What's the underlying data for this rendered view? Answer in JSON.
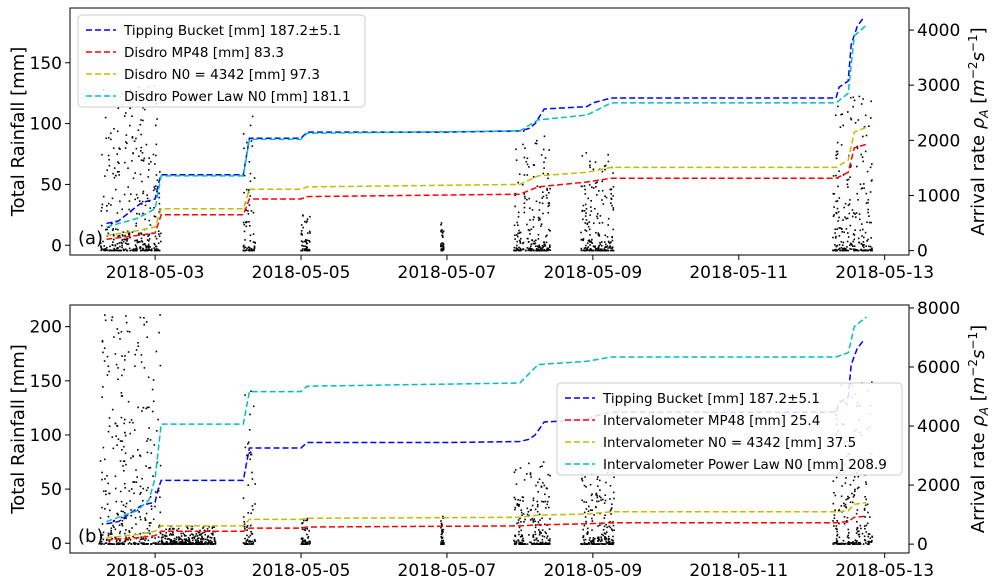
{
  "chart_data": [
    {
      "type": "line",
      "panel_label": "(a)",
      "ylabel": "Total Rainfall [mm]",
      "ylabel_right": "Arrival rate ρA [m⁻²s⁻¹]",
      "ylabel_right_parts": {
        "pre": "Arrival rate ",
        "rho": "ρ",
        "sub": "A",
        "open": " [",
        "m": "m",
        "msup": "−2",
        "s": "s",
        "ssup": "−1",
        "close": "]"
      },
      "xlim": [
        "2018-05-01T20:00",
        "2018-05-13T08:00"
      ],
      "ylim": [
        -8,
        195
      ],
      "ylim_right": [
        -80,
        4400
      ],
      "x_ticks": [
        "2018-05-03",
        "2018-05-05",
        "2018-05-07",
        "2018-05-09",
        "2018-05-11",
        "2018-05-13"
      ],
      "y_ticks": [
        0,
        50,
        100,
        150
      ],
      "y_ticks_right": [
        0,
        1000,
        2000,
        3000,
        4000
      ],
      "legend_position": "upper-left",
      "series": [
        {
          "name": "Tipping Bucket [mm] 187.2±5.1",
          "color": "#0000ff",
          "x": [
            "2018-05-02T08:00",
            "2018-05-02T12:00",
            "2018-05-02T19:00",
            "2018-05-02T21:00",
            "2018-05-03T00:00",
            "2018-05-03T01:00",
            "2018-05-03T02:00",
            "2018-05-04T05:00",
            "2018-05-04T07:00",
            "2018-05-05T00:00",
            "2018-05-05T02:00",
            "2018-05-07T00:00",
            "2018-05-08T00:00",
            "2018-05-08T03:00",
            "2018-05-08T05:00",
            "2018-05-08T08:00",
            "2018-05-08T22:00",
            "2018-05-09T00:00",
            "2018-05-09T06:00",
            "2018-05-12T08:00",
            "2018-05-12T09:00",
            "2018-05-12T12:00",
            "2018-05-12T13:00",
            "2018-05-12T15:00",
            "2018-05-12T17:00"
          ],
          "y": [
            18,
            20,
            34,
            36,
            38,
            50,
            58,
            58,
            88,
            88,
            93,
            93,
            94,
            96,
            100,
            112,
            114,
            117,
            121,
            121,
            130,
            135,
            165,
            180,
            187
          ]
        },
        {
          "name": "Disdro MP48 [mm] 83.3",
          "color": "#ff0000",
          "x": [
            "2018-05-02T08:00",
            "2018-05-02T18:00",
            "2018-05-03T00:00",
            "2018-05-03T02:00",
            "2018-05-04T05:00",
            "2018-05-04T07:00",
            "2018-05-05T00:00",
            "2018-05-05T02:00",
            "2018-05-08T00:00",
            "2018-05-08T06:00",
            "2018-05-08T22:00",
            "2018-05-09T06:00",
            "2018-05-12T08:00",
            "2018-05-12T12:00",
            "2018-05-12T14:00",
            "2018-05-12T18:00"
          ],
          "y": [
            5,
            8,
            10,
            25,
            25,
            38,
            38,
            40,
            42,
            48,
            52,
            55,
            55,
            60,
            80,
            83
          ]
        },
        {
          "name": "Disdro N0 = 4342 [mm] 97.3",
          "color": "#bfbf00",
          "x": [
            "2018-05-02T08:00",
            "2018-05-02T18:00",
            "2018-05-03T00:00",
            "2018-05-03T02:00",
            "2018-05-04T05:00",
            "2018-05-04T07:00",
            "2018-05-05T00:00",
            "2018-05-05T02:00",
            "2018-05-08T00:00",
            "2018-05-08T06:00",
            "2018-05-08T22:00",
            "2018-05-09T06:00",
            "2018-05-12T08:00",
            "2018-05-12T12:00",
            "2018-05-12T14:00",
            "2018-05-12T18:00"
          ],
          "y": [
            8,
            12,
            15,
            30,
            30,
            46,
            46,
            48,
            50,
            57,
            60,
            64,
            64,
            70,
            93,
            97
          ]
        },
        {
          "name": "Disdro Power Law N0 [mm] 181.1",
          "color": "#00bfbf",
          "x": [
            "2018-05-02T08:00",
            "2018-05-02T18:00",
            "2018-05-03T00:00",
            "2018-05-03T02:00",
            "2018-05-04T05:00",
            "2018-05-04T07:00",
            "2018-05-05T00:00",
            "2018-05-05T02:00",
            "2018-05-08T00:00",
            "2018-05-08T06:00",
            "2018-05-08T22:00",
            "2018-05-09T06:00",
            "2018-05-12T08:00",
            "2018-05-12T12:00",
            "2018-05-12T14:00",
            "2018-05-12T18:00"
          ],
          "y": [
            15,
            22,
            30,
            57,
            57,
            87,
            87,
            92,
            94,
            103,
            107,
            117,
            117,
            125,
            172,
            181
          ]
        }
      ],
      "arrival_bursts": [
        {
          "start": "2018-05-02T06:00",
          "end": "2018-05-03T02:00",
          "max": 3000
        },
        {
          "start": "2018-05-04T05:00",
          "end": "2018-05-04T09:00",
          "max": 2800
        },
        {
          "start": "2018-05-05T00:00",
          "end": "2018-05-05T03:00",
          "max": 700
        },
        {
          "start": "2018-05-06T22:00",
          "end": "2018-05-06T23:00",
          "max": 600
        },
        {
          "start": "2018-05-07T22:00",
          "end": "2018-05-08T10:00",
          "max": 2200
        },
        {
          "start": "2018-05-08T20:00",
          "end": "2018-05-09T07:00",
          "max": 1800
        },
        {
          "start": "2018-05-12T07:00",
          "end": "2018-05-12T20:00",
          "max": 2800
        }
      ]
    },
    {
      "type": "line",
      "panel_label": "(b)",
      "ylabel": "Total Rainfall [mm]",
      "ylabel_right": "Arrival rate ρA [m⁻²s⁻¹]",
      "ylabel_right_parts": {
        "pre": "Arrival rate ",
        "rho": "ρ",
        "sub": "A",
        "open": " [",
        "m": "m",
        "msup": "−2",
        "s": "s",
        "ssup": "−1",
        "close": "]"
      },
      "xlim": [
        "2018-05-01T20:00",
        "2018-05-13T08:00"
      ],
      "ylim": [
        -9,
        220
      ],
      "ylim_right": [
        -300,
        8100
      ],
      "x_ticks": [
        "2018-05-03",
        "2018-05-05",
        "2018-05-07",
        "2018-05-09",
        "2018-05-11",
        "2018-05-13"
      ],
      "y_ticks": [
        0,
        50,
        100,
        150,
        200
      ],
      "y_ticks_right": [
        0,
        2000,
        4000,
        6000,
        8000
      ],
      "legend_position": "center-right",
      "series": [
        {
          "name": "Tipping Bucket [mm] 187.2±5.1",
          "color": "#0000ff",
          "x": [
            "2018-05-02T08:00",
            "2018-05-02T12:00",
            "2018-05-02T19:00",
            "2018-05-02T21:00",
            "2018-05-03T00:00",
            "2018-05-03T01:00",
            "2018-05-03T02:00",
            "2018-05-04T05:00",
            "2018-05-04T07:00",
            "2018-05-05T00:00",
            "2018-05-05T02:00",
            "2018-05-07T00:00",
            "2018-05-08T00:00",
            "2018-05-08T03:00",
            "2018-05-08T05:00",
            "2018-05-08T08:00",
            "2018-05-08T22:00",
            "2018-05-09T00:00",
            "2018-05-09T06:00",
            "2018-05-12T08:00",
            "2018-05-12T09:00",
            "2018-05-12T12:00",
            "2018-05-12T13:00",
            "2018-05-12T15:00",
            "2018-05-12T17:00"
          ],
          "y": [
            18,
            20,
            34,
            36,
            38,
            50,
            58,
            58,
            88,
            88,
            93,
            93,
            94,
            96,
            100,
            112,
            114,
            117,
            121,
            121,
            130,
            135,
            165,
            180,
            187
          ]
        },
        {
          "name": "Intervalometer MP48 [mm] 25.4",
          "color": "#ff0000",
          "x": [
            "2018-05-02T08:00",
            "2018-05-02T18:00",
            "2018-05-03T00:00",
            "2018-05-03T02:00",
            "2018-05-04T05:00",
            "2018-05-04T07:00",
            "2018-05-05T00:00",
            "2018-05-05T02:00",
            "2018-05-08T00:00",
            "2018-05-08T06:00",
            "2018-05-08T22:00",
            "2018-05-09T06:00",
            "2018-05-12T08:00",
            "2018-05-12T12:00",
            "2018-05-12T14:00",
            "2018-05-12T18:00"
          ],
          "y": [
            3,
            5,
            7,
            11,
            11,
            14,
            14,
            15,
            16,
            17,
            18,
            19,
            19,
            20,
            24,
            25
          ]
        },
        {
          "name": "Intervalometer N0 = 4342 [mm] 37.5",
          "color": "#bfbf00",
          "x": [
            "2018-05-02T08:00",
            "2018-05-02T18:00",
            "2018-05-03T00:00",
            "2018-05-03T02:00",
            "2018-05-04T05:00",
            "2018-05-04T07:00",
            "2018-05-05T00:00",
            "2018-05-05T02:00",
            "2018-05-08T00:00",
            "2018-05-08T06:00",
            "2018-05-08T22:00",
            "2018-05-09T06:00",
            "2018-05-12T08:00",
            "2018-05-12T12:00",
            "2018-05-12T14:00",
            "2018-05-12T18:00"
          ],
          "y": [
            5,
            8,
            11,
            16,
            16,
            22,
            22,
            23,
            24,
            26,
            27,
            29,
            29,
            30,
            36,
            37.5
          ]
        },
        {
          "name": "Intervalometer Power Law N0 [mm] 208.9",
          "color": "#00bfbf",
          "x": [
            "2018-05-02T08:00",
            "2018-05-02T18:00",
            "2018-05-02T22:00",
            "2018-05-03T00:00",
            "2018-05-03T02:00",
            "2018-05-04T05:00",
            "2018-05-04T07:00",
            "2018-05-05T00:00",
            "2018-05-05T02:00",
            "2018-05-08T00:00",
            "2018-05-08T06:00",
            "2018-05-08T22:00",
            "2018-05-09T06:00",
            "2018-05-12T08:00",
            "2018-05-12T12:00",
            "2018-05-12T14:00",
            "2018-05-12T18:00"
          ],
          "y": [
            20,
            30,
            40,
            60,
            110,
            110,
            140,
            140,
            145,
            148,
            165,
            168,
            172,
            172,
            176,
            200,
            209
          ]
        }
      ],
      "arrival_bursts": [
        {
          "start": "2018-05-02T06:00",
          "end": "2018-05-03T02:00",
          "max": 7800
        },
        {
          "start": "2018-05-03T02:00",
          "end": "2018-05-03T20:00",
          "max": 600
        },
        {
          "start": "2018-05-04T05:00",
          "end": "2018-05-04T09:00",
          "max": 5200
        },
        {
          "start": "2018-05-05T00:00",
          "end": "2018-05-05T03:00",
          "max": 900
        },
        {
          "start": "2018-05-06T22:00",
          "end": "2018-05-06T23:00",
          "max": 1000
        },
        {
          "start": "2018-05-07T22:00",
          "end": "2018-05-08T10:00",
          "max": 2800
        },
        {
          "start": "2018-05-08T20:00",
          "end": "2018-05-09T07:00",
          "max": 2500
        },
        {
          "start": "2018-05-12T07:00",
          "end": "2018-05-12T20:00",
          "max": 5500
        }
      ]
    }
  ]
}
